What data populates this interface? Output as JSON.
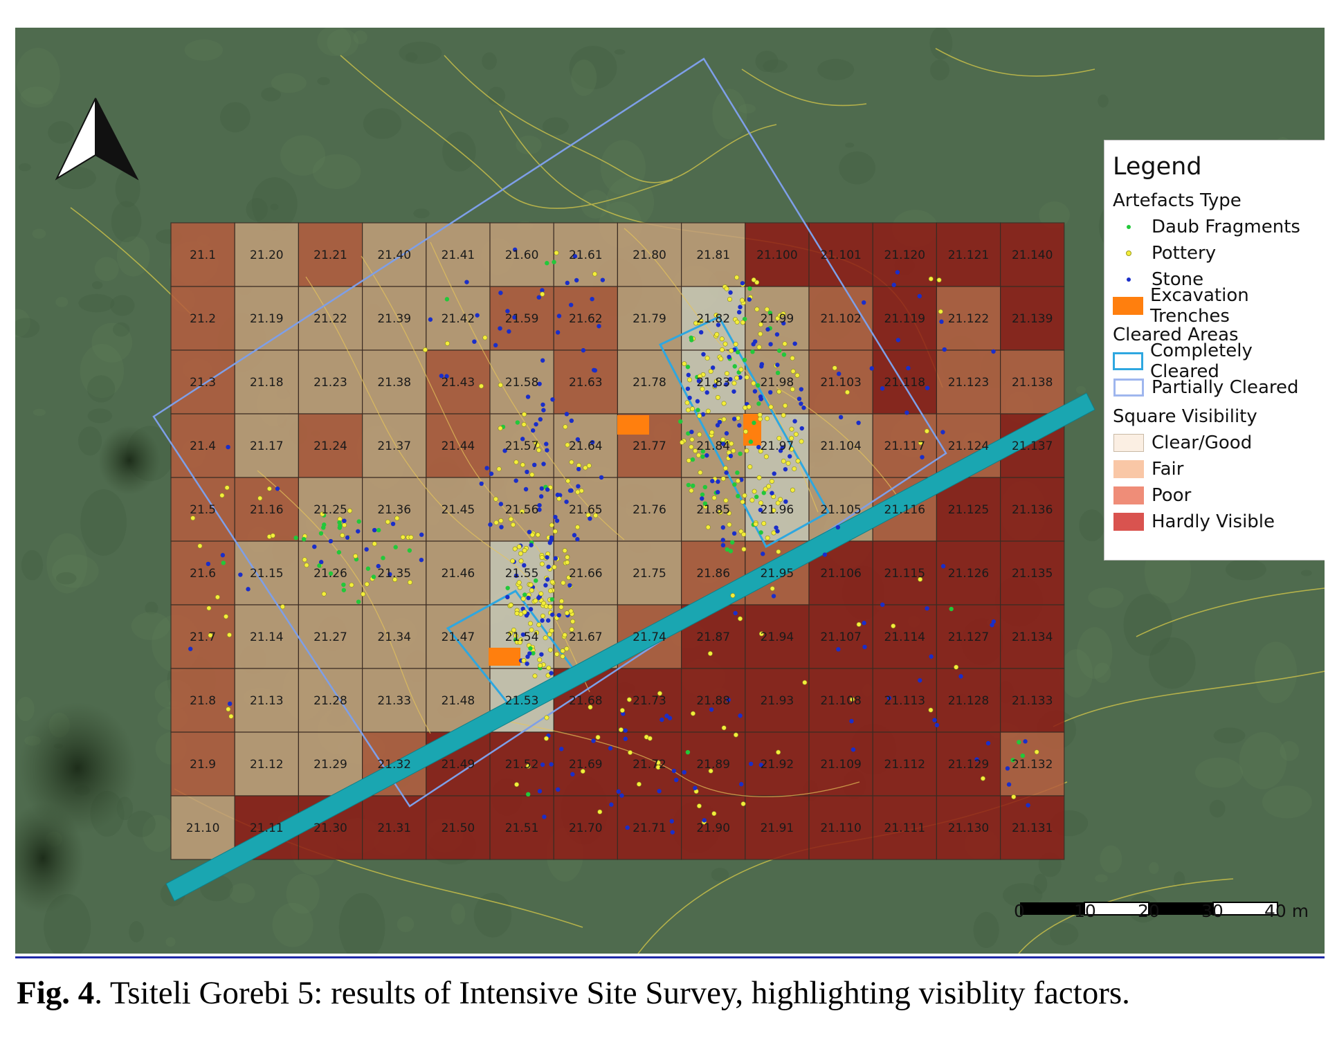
{
  "grid": {
    "columns": [
      [
        "21.1",
        "21.2",
        "21.3",
        "21.4",
        "21.5",
        "21.6",
        "21.7",
        "21.8",
        "21.9",
        "21.10"
      ],
      [
        "21.20",
        "21.19",
        "21.18",
        "21.17",
        "21.16",
        "21.15",
        "21.14",
        "21.13",
        "21.12",
        "21.11"
      ],
      [
        "21.21",
        "21.22",
        "21.23",
        "21.24",
        "21.25",
        "21.26",
        "21.27",
        "21.28",
        "21.29",
        "21.30"
      ],
      [
        "21.40",
        "21.39",
        "21.38",
        "21.37",
        "21.36",
        "21.35",
        "21.34",
        "21.33",
        "21.32",
        "21.31"
      ],
      [
        "21.41",
        "21.42",
        "21.43",
        "21.44",
        "21.45",
        "21.46",
        "21.47",
        "21.48",
        "21.49",
        "21.50"
      ],
      [
        "21.60",
        "21.59",
        "21.58",
        "21.57",
        "21.56",
        "21.55",
        "21.54",
        "21.53",
        "21.52",
        "21.51"
      ],
      [
        "21.61",
        "21.62",
        "21.63",
        "21.64",
        "21.65",
        "21.66",
        "21.67",
        "21.68",
        "21.69",
        "21.70"
      ],
      [
        "21.80",
        "21.79",
        "21.78",
        "21.77",
        "21.76",
        "21.75",
        "21.74",
        "21.73",
        "21.72",
        "21.71"
      ],
      [
        "21.81",
        "21.82",
        "21.83",
        "21.84",
        "21.85",
        "21.86",
        "21.87",
        "21.88",
        "21.89",
        "21.90"
      ],
      [
        "21.100",
        "21.99",
        "21.98",
        "21.97",
        "21.96",
        "21.95",
        "21.94",
        "21.93",
        "21.92",
        "21.91"
      ],
      [
        "21.101",
        "21.102",
        "21.103",
        "21.104",
        "21.105",
        "21.106",
        "21.107",
        "21.108",
        "21.109",
        "21.110"
      ],
      [
        "21.120",
        "21.119",
        "21.118",
        "21.117",
        "21.116",
        "21.115",
        "21.114",
        "21.113",
        "21.112",
        "21.111"
      ],
      [
        "21.121",
        "21.122",
        "21.123",
        "21.124",
        "21.125",
        "21.126",
        "21.127",
        "21.128",
        "21.129",
        "21.130"
      ],
      [
        "21.140",
        "21.139",
        "21.138",
        "21.137",
        "21.136",
        "21.135",
        "21.134",
        "21.133",
        "21.132",
        "21.131"
      ]
    ],
    "visibility": [
      [
        "P",
        "P",
        "P",
        "P",
        "P",
        "P",
        "P",
        "P",
        "P",
        "F"
      ],
      [
        "F",
        "F",
        "F",
        "F",
        "P",
        "F",
        "F",
        "F",
        "F",
        "H"
      ],
      [
        "P",
        "F",
        "F",
        "P",
        "F",
        "F",
        "F",
        "F",
        "F",
        "H"
      ],
      [
        "F",
        "F",
        "F",
        "F",
        "F",
        "F",
        "F",
        "F",
        "P",
        "H"
      ],
      [
        "F",
        "F",
        "P",
        "P",
        "F",
        "F",
        "F",
        "F",
        "H",
        "H"
      ],
      [
        "F",
        "P",
        "F",
        "F",
        "F",
        "C",
        "C",
        "C",
        "H",
        "H"
      ],
      [
        "F",
        "P",
        "P",
        "F",
        "F",
        "F",
        "F",
        "H",
        "H",
        "H"
      ],
      [
        "F",
        "F",
        "F",
        "P",
        "F",
        "F",
        "P",
        "H",
        "H",
        "H"
      ],
      [
        "F",
        "C",
        "C",
        "F",
        "F",
        "P",
        "H",
        "H",
        "H",
        "H"
      ],
      [
        "H",
        "F",
        "F",
        "C",
        "C",
        "P",
        "H",
        "H",
        "H",
        "H"
      ],
      [
        "H",
        "P",
        "P",
        "F",
        "F",
        "H",
        "H",
        "H",
        "H",
        "H"
      ],
      [
        "H",
        "H",
        "H",
        "P",
        "P",
        "H",
        "H",
        "H",
        "H",
        "H"
      ],
      [
        "H",
        "P",
        "P",
        "P",
        "H",
        "H",
        "H",
        "H",
        "H",
        "H"
      ],
      [
        "H",
        "H",
        "P",
        "H",
        "H",
        "H",
        "H",
        "H",
        "P",
        "H"
      ]
    ]
  },
  "colors": {
    "C": "#cdc8b4",
    "F": "#c39f7a",
    "P": "#b65e3f",
    "H": "#8f1c16",
    "trench": "#ff7f0e",
    "road": "#1aa6b1",
    "completely_cleared": "#2ea7e0",
    "partially_cleared": "#7e9fe8",
    "daub": "#22c83a",
    "pottery": "#f4ee3b",
    "stone": "#1a2ec9",
    "legend_clear": "#fbefe3",
    "legend_fair": "#f9c7a6",
    "legend_poor": "#ef8d78",
    "legend_hardly": "#d9534f"
  },
  "legend": {
    "title": "Legend",
    "artefacts_title": "Artefacts Type",
    "daub": "Daub Fragments",
    "pottery": "Pottery",
    "stone": "Stone",
    "trenches": "Excavation Trenches",
    "cleared_title": "Cleared Areas",
    "completely": "Completely Cleared",
    "partially": "Partially Cleared",
    "visibility_title": "Square Visibility",
    "clear": "Clear/Good",
    "fair": "Fair",
    "poor": "Poor",
    "hardly": "Hardly Visible"
  },
  "scale": {
    "labels": [
      "0",
      "10",
      "20",
      "30",
      "40 m"
    ]
  },
  "north_arrow_icon": "north-arrow-icon",
  "caption": {
    "label": "Fig. 4",
    "text": ". Tsiteli Gorebi 5: results of Intensive Site Survey, highlighting visiblity factors."
  }
}
